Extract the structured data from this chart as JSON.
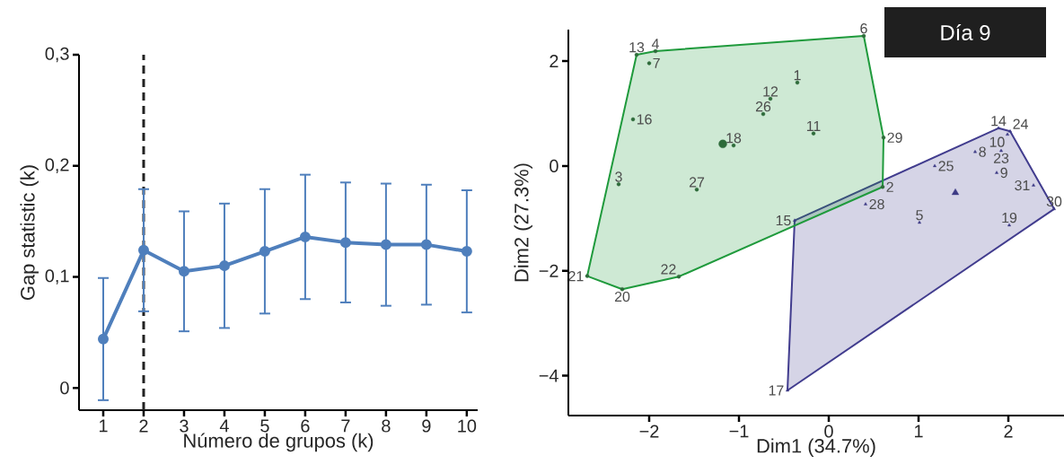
{
  "chart_data": [
    {
      "type": "line",
      "xlabel": "Número de grupos (k)",
      "ylabel": "Gap statistic (k)",
      "x": [
        1,
        2,
        3,
        4,
        5,
        6,
        7,
        8,
        9,
        10
      ],
      "xlim": [
        0.4,
        10.27
      ],
      "xticks": [
        1,
        2,
        3,
        4,
        5,
        6,
        7,
        8,
        9,
        10
      ],
      "ylim": [
        -0.02,
        0.3
      ],
      "yticks": [
        {
          "value": 0,
          "label": "0"
        },
        {
          "value": 0.1,
          "label": "0,1"
        },
        {
          "value": 0.2,
          "label": "0,2"
        },
        {
          "value": 0.3,
          "label": "0,3"
        }
      ],
      "marker": "circle",
      "series": [
        {
          "color": "#4f7fbc",
          "values": [
            0.044,
            0.124,
            0.105,
            0.11,
            0.123,
            0.136,
            0.131,
            0.129,
            0.129,
            0.123
          ],
          "errors": [
            0.055,
            0.055,
            0.054,
            0.056,
            0.056,
            0.056,
            0.054,
            0.055,
            0.054,
            0.055
          ]
        }
      ],
      "ref_lines": [
        {
          "axis": "x",
          "value": 2,
          "color": "#222222",
          "line_style": "dashed"
        }
      ]
    },
    {
      "type": "scatter",
      "title": "Día 9",
      "xlabel": "Dim1 (34.7%)",
      "ylabel": "Dim2 (27.3%)",
      "xlim": [
        -2.9,
        2.62
      ],
      "xticks": [
        {
          "value": -2,
          "label": "−2"
        },
        {
          "value": -1,
          "label": "−1"
        },
        {
          "value": 0,
          "label": "0"
        },
        {
          "value": 1,
          "label": "1"
        },
        {
          "value": 2,
          "label": "2"
        }
      ],
      "ylim": [
        -4.76,
        2.6
      ],
      "yticks": [
        {
          "value": -4,
          "label": "−4"
        },
        {
          "value": -2,
          "label": "−2"
        },
        {
          "value": 0,
          "label": "0"
        },
        {
          "value": 2,
          "label": "2"
        }
      ],
      "series": [
        {
          "type": "area",
          "color": "#413c8e",
          "x": [
            -0.38,
            1.89,
            2.02,
            2.51,
            -0.46
          ],
          "values": [
            -1.04,
            0.72,
            0.66,
            -0.82,
            -4.28
          ]
        },
        {
          "type": "area",
          "color": "#1f9a3c",
          "x": [
            -2.14,
            -1.93,
            0.39,
            0.61,
            0.6,
            -1.67,
            -2.3,
            -2.69
          ],
          "values": [
            2.12,
            2.19,
            2.48,
            0.54,
            -0.4,
            -2.11,
            -2.35,
            -2.1
          ]
        },
        {
          "type": "scatter",
          "marker": "circle",
          "color": "#2e6b3a",
          "x": [
            -0.35,
            -1.93,
            -2.0,
            -2.14,
            -2.18,
            -2.34,
            -1.47,
            -1.06,
            -0.73,
            -0.65,
            -0.17,
            0.61,
            0.6,
            0.39,
            -2.69,
            -2.3,
            -1.67
          ],
          "values": [
            1.59,
            2.19,
            1.96,
            2.12,
            0.89,
            -0.35,
            -0.45,
            0.39,
            0.99,
            1.28,
            0.62,
            0.54,
            -0.4,
            2.48,
            -2.1,
            -2.35,
            -2.11
          ]
        },
        {
          "type": "scatter",
          "marker": "triangle",
          "color": "#3d3a85",
          "x": [
            -0.38,
            0.41,
            1.18,
            1.63,
            1.89,
            2.02,
            1.99,
            1.92,
            1.87,
            1.01,
            2.01,
            2.28,
            2.51,
            -0.46
          ],
          "values": [
            -1.04,
            -0.73,
            0.0,
            0.27,
            0.72,
            0.66,
            0.6,
            0.29,
            -0.13,
            -1.08,
            -1.13,
            -0.37,
            -0.82,
            -4.28
          ]
        },
        {
          "type": "scatter",
          "marker": "circle",
          "color": "#2e6b3a",
          "x": [
            -1.18
          ],
          "values": [
            0.42
          ]
        },
        {
          "type": "scatter",
          "marker": "triangle",
          "color": "#3d3a85",
          "x": [
            1.41
          ],
          "values": [
            -0.51
          ]
        }
      ],
      "annotations": [
        {
          "text": "1",
          "x": -0.35,
          "y": 1.59
        },
        {
          "text": "4",
          "x": -1.93,
          "y": 2.19
        },
        {
          "text": "7",
          "x": -2.0,
          "y": 1.96
        },
        {
          "text": "13",
          "x": -2.14,
          "y": 2.12
        },
        {
          "text": "16",
          "x": -2.18,
          "y": 0.89
        },
        {
          "text": "3",
          "x": -2.34,
          "y": -0.35
        },
        {
          "text": "27",
          "x": -1.47,
          "y": -0.45
        },
        {
          "text": "18",
          "x": -1.06,
          "y": 0.39
        },
        {
          "text": "26",
          "x": -0.73,
          "y": 0.99
        },
        {
          "text": "12",
          "x": -0.65,
          "y": 1.28
        },
        {
          "text": "11",
          "x": -0.17,
          "y": 0.62
        },
        {
          "text": "29",
          "x": 0.61,
          "y": 0.54
        },
        {
          "text": "2",
          "x": 0.6,
          "y": -0.4
        },
        {
          "text": "6",
          "x": 0.39,
          "y": 2.48
        },
        {
          "text": "21",
          "x": -2.69,
          "y": -2.1
        },
        {
          "text": "20",
          "x": -2.3,
          "y": -2.35
        },
        {
          "text": "22",
          "x": -1.67,
          "y": -2.11
        },
        {
          "text": "15",
          "x": -0.38,
          "y": -1.04
        },
        {
          "text": "28",
          "x": 0.41,
          "y": -0.73
        },
        {
          "text": "25",
          "x": 1.18,
          "y": 0.0
        },
        {
          "text": "8",
          "x": 1.63,
          "y": 0.27
        },
        {
          "text": "14",
          "x": 1.89,
          "y": 0.72
        },
        {
          "text": "24",
          "x": 2.02,
          "y": 0.66
        },
        {
          "text": "10",
          "x": 1.99,
          "y": 0.6
        },
        {
          "text": "23",
          "x": 1.92,
          "y": 0.29
        },
        {
          "text": "9",
          "x": 1.87,
          "y": -0.13
        },
        {
          "text": "5",
          "x": 1.01,
          "y": -1.08
        },
        {
          "text": "19",
          "x": 2.01,
          "y": -1.13
        },
        {
          "text": "31",
          "x": 2.28,
          "y": -0.37
        },
        {
          "text": "30",
          "x": 2.51,
          "y": -0.82
        },
        {
          "text": "17",
          "x": -0.46,
          "y": -4.28
        }
      ]
    }
  ]
}
